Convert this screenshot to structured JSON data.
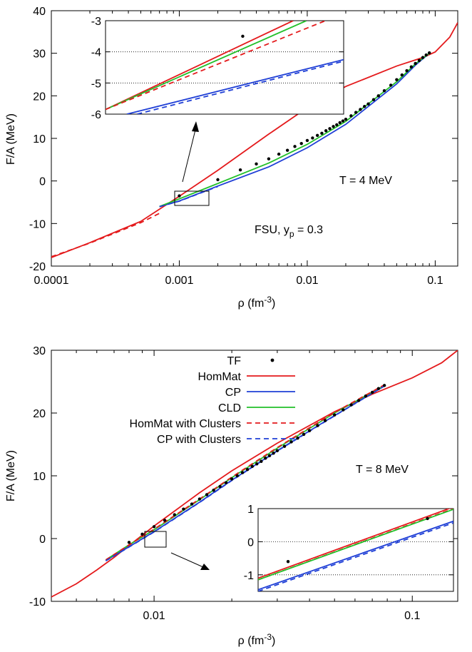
{
  "chart_data": [
    {
      "type": "line",
      "xscale": "log",
      "xlim": [
        0.0001,
        0.15
      ],
      "ylim": [
        -20,
        40
      ],
      "xlabel": "ρ (fm",
      "xlabel_sup": "-3",
      "xlabel_tail": ")",
      "ylabel": "F/A (MeV)",
      "xticks": [
        0.0001,
        0.001,
        0.01,
        0.1
      ],
      "xtick_labels": [
        "0.0001",
        "0.001",
        "0.01",
        "0.1"
      ],
      "yticks": [
        -20,
        -10,
        0,
        10,
        20,
        30,
        40
      ],
      "ytick_labels": [
        "-20",
        "-10",
        "0",
        "10",
        "20",
        "30",
        "40"
      ],
      "annotations": [
        {
          "text": "T = 4 MeV"
        },
        {
          "text": "FSU, y",
          "sub": "p",
          "tail": " = 0.3"
        }
      ],
      "series": [
        {
          "key": "HomMat",
          "color": "#e41a1c",
          "style": "solid",
          "x": [
            0.0001,
            0.0002,
            0.0005,
            0.001,
            0.002,
            0.005,
            0.01,
            0.02,
            0.05,
            0.08,
            0.1,
            0.13,
            0.15
          ],
          "y": [
            -18.0,
            -14.5,
            -9.5,
            -3.6,
            2.5,
            11.0,
            17.2,
            22.2,
            27.0,
            29.0,
            30.3,
            33.8,
            37.2
          ]
        },
        {
          "key": "CP",
          "color": "#1f3fd6",
          "style": "solid",
          "x": [
            0.0007,
            0.001,
            0.002,
            0.005,
            0.01,
            0.02,
            0.05,
            0.07,
            0.09
          ],
          "y": [
            -6.0,
            -4.7,
            -1.2,
            3.3,
            7.8,
            13.3,
            22.8,
            27.2,
            30.0
          ]
        },
        {
          "key": "CLD",
          "color": "#22c02a",
          "style": "solid",
          "x": [
            0.0007,
            0.001,
            0.002,
            0.005,
            0.01,
            0.02,
            0.05,
            0.07,
            0.09
          ],
          "y": [
            -6.0,
            -4.2,
            -0.6,
            4.2,
            8.6,
            14.0,
            23.3,
            27.5,
            30.0
          ]
        },
        {
          "key": "HomMat with Clusters",
          "color": "#e41a1c",
          "style": "dashed",
          "x": [
            0.0001,
            0.0002,
            0.0005,
            0.0007
          ],
          "y": [
            -17.8,
            -14.6,
            -9.8,
            -7.6
          ]
        },
        {
          "key": "CP with Clusters",
          "color": "#1f3fd6",
          "style": "dashed",
          "x": [
            0.0007,
            0.001,
            0.002
          ],
          "y": [
            -6.05,
            -4.75,
            -1.3
          ]
        }
      ],
      "tf_points": {
        "x": [
          0.001,
          0.002,
          0.003,
          0.004,
          0.005,
          0.006,
          0.007,
          0.008,
          0.009,
          0.01,
          0.011,
          0.012,
          0.013,
          0.014,
          0.015,
          0.016,
          0.017,
          0.018,
          0.019,
          0.02,
          0.022,
          0.024,
          0.026,
          0.028,
          0.03,
          0.033,
          0.036,
          0.04,
          0.045,
          0.05,
          0.055,
          0.06,
          0.065,
          0.07,
          0.075,
          0.08,
          0.085,
          0.09
        ],
        "y": [
          -3.5,
          0.3,
          2.6,
          4.0,
          5.2,
          6.3,
          7.2,
          8.1,
          8.8,
          9.5,
          10.1,
          10.7,
          11.2,
          11.8,
          12.3,
          12.8,
          13.2,
          13.7,
          14.1,
          14.5,
          15.3,
          16.1,
          16.8,
          17.5,
          18.1,
          19.1,
          20.0,
          21.2,
          22.5,
          23.8,
          24.9,
          25.9,
          26.8,
          27.6,
          28.3,
          29.0,
          29.6,
          30.1
        ]
      },
      "inset": {
        "xlim": [
          0.0007,
          0.0013
        ],
        "ylim": [
          -6,
          -3
        ],
        "yticks": [
          -6,
          -5,
          -4,
          -3
        ],
        "ytick_labels": [
          "-6",
          "-5",
          "-4",
          "-3"
        ],
        "dotted_y": [
          -5,
          -4
        ],
        "tf_points": {
          "x": [
            0.001
          ],
          "y": [
            -3.5
          ]
        },
        "series": [
          {
            "key": "HomMat",
            "color": "#e41a1c",
            "style": "solid",
            "x": [
              0.0007,
              0.00114
            ],
            "y": [
              -5.85,
              -3.0
            ]
          },
          {
            "key": "CLD",
            "color": "#22c02a",
            "style": "solid",
            "x": [
              0.0007,
              0.00118
            ],
            "y": [
              -5.85,
              -3.0
            ]
          },
          {
            "key": "HomMat with Clusters",
            "color": "#e41a1c",
            "style": "dashed",
            "x": [
              0.0007,
              0.00124
            ],
            "y": [
              -5.85,
              -3.0
            ]
          },
          {
            "key": "CP",
            "color": "#1f3fd6",
            "style": "solid",
            "x": [
              0.00074,
              0.0013
            ],
            "y": [
              -6.0,
              -4.25
            ]
          },
          {
            "key": "CP with Clusters",
            "color": "#1f3fd6",
            "style": "dashed",
            "x": [
              0.00076,
              0.0013
            ],
            "y": [
              -6.0,
              -4.3
            ]
          }
        ]
      }
    },
    {
      "type": "line",
      "xscale": "log",
      "xlim": [
        0.004,
        0.15
      ],
      "ylim": [
        -10,
        30
      ],
      "xlabel": "ρ (fm",
      "xlabel_sup": "-3",
      "xlabel_tail": ")",
      "ylabel": "F/A (MeV)",
      "xticks": [
        0.01,
        0.1
      ],
      "xtick_labels": [
        "0.01",
        "0.1"
      ],
      "yticks": [
        -10,
        0,
        10,
        20,
        30
      ],
      "ytick_labels": [
        "-10",
        "0",
        "10",
        "20",
        "30"
      ],
      "legend": {
        "placement": "top-left",
        "entries": [
          {
            "label": "TF",
            "key": "TF",
            "marker": "dot"
          },
          {
            "label": "HomMat",
            "key": "HomMat"
          },
          {
            "label": "CP",
            "key": "CP"
          },
          {
            "label": "CLD",
            "key": "CLD"
          },
          {
            "label": "HomMat with Clusters",
            "key": "HomMat with Clusters"
          },
          {
            "label": "CP with Clusters",
            "key": "CP with Clusters"
          }
        ]
      },
      "annotations": [
        {
          "text": "T = 8 MeV"
        }
      ],
      "series": [
        {
          "key": "HomMat",
          "color": "#e41a1c",
          "style": "solid",
          "x": [
            0.004,
            0.005,
            0.006,
            0.007,
            0.008,
            0.01,
            0.015,
            0.02,
            0.03,
            0.05,
            0.07,
            0.1,
            0.13,
            0.15
          ],
          "y": [
            -9.3,
            -7.2,
            -5.0,
            -3.0,
            -1.1,
            2.0,
            7.3,
            10.8,
            15.2,
            20.2,
            23.0,
            25.6,
            28.0,
            30.0
          ]
        },
        {
          "key": "CP",
          "color": "#1f3fd6",
          "style": "solid",
          "x": [
            0.0065,
            0.008,
            0.01,
            0.015,
            0.02,
            0.03,
            0.05,
            0.078
          ],
          "y": [
            -3.5,
            -1.3,
            1.1,
            5.8,
            9.3,
            14.0,
            19.6,
            24.3
          ]
        },
        {
          "key": "CLD",
          "color": "#22c02a",
          "style": "solid",
          "x": [
            0.0065,
            0.008,
            0.01,
            0.015,
            0.02,
            0.03,
            0.05,
            0.078
          ],
          "y": [
            -3.4,
            -1.0,
            1.4,
            6.2,
            9.7,
            14.4,
            20.0,
            24.4
          ]
        },
        {
          "key": "HomMat with Clusters",
          "color": "#e41a1c",
          "style": "dashed",
          "x": [
            0.0065,
            0.008,
            0.01,
            0.015,
            0.02,
            0.03,
            0.05,
            0.078
          ],
          "y": [
            -3.4,
            -1.0,
            1.5,
            6.3,
            9.8,
            14.5,
            20.1,
            24.5
          ]
        },
        {
          "key": "CP with Clusters",
          "color": "#1f3fd6",
          "style": "dashed",
          "x": [
            0.0065,
            0.008,
            0.01,
            0.015,
            0.02,
            0.03,
            0.05,
            0.078
          ],
          "y": [
            -3.55,
            -1.35,
            1.05,
            5.75,
            9.25,
            13.95,
            19.55,
            24.3
          ]
        }
      ],
      "tf_points": {
        "x": [
          0.008,
          0.009,
          0.01,
          0.011,
          0.012,
          0.013,
          0.014,
          0.015,
          0.016,
          0.017,
          0.018,
          0.019,
          0.02,
          0.021,
          0.022,
          0.023,
          0.024,
          0.025,
          0.026,
          0.027,
          0.028,
          0.029,
          0.03,
          0.032,
          0.034,
          0.036,
          0.038,
          0.04,
          0.043,
          0.046,
          0.05,
          0.054,
          0.058,
          0.062,
          0.066,
          0.07,
          0.074,
          0.078
        ],
        "y": [
          -0.6,
          0.7,
          1.9,
          2.9,
          3.8,
          4.7,
          5.5,
          6.3,
          7.0,
          7.7,
          8.3,
          8.9,
          9.5,
          10.0,
          10.5,
          11.0,
          11.5,
          11.9,
          12.3,
          12.8,
          13.2,
          13.6,
          14.0,
          14.7,
          15.4,
          16.0,
          16.6,
          17.2,
          18.0,
          18.8,
          19.7,
          20.5,
          21.3,
          22.0,
          22.7,
          23.3,
          23.9,
          24.4
        ]
      },
      "inset": {
        "xlim": [
          0.0078,
          0.0092
        ],
        "ylim": [
          -1.5,
          1
        ],
        "yticks": [
          -1,
          0,
          1
        ],
        "ytick_labels": [
          "-1",
          "0",
          "1"
        ],
        "dotted_y": [
          -1,
          0
        ],
        "tf_points": {
          "x": [
            0.008,
            0.009
          ],
          "y": [
            -0.6,
            0.7
          ]
        },
        "series": [
          {
            "key": "HomMat",
            "color": "#e41a1c",
            "style": "solid",
            "x": [
              0.0078,
              0.0092
            ],
            "y": [
              -1.1,
              1.05
            ]
          },
          {
            "key": "HomMat with Clusters",
            "color": "#e41a1c",
            "style": "dashed",
            "x": [
              0.0078,
              0.0092
            ],
            "y": [
              -1.15,
              1.0
            ]
          },
          {
            "key": "CLD",
            "color": "#22c02a",
            "style": "solid",
            "x": [
              0.0078,
              0.0092
            ],
            "y": [
              -1.15,
              0.98
            ]
          },
          {
            "key": "CP",
            "color": "#1f3fd6",
            "style": "solid",
            "x": [
              0.0078,
              0.0092
            ],
            "y": [
              -1.45,
              0.62
            ]
          },
          {
            "key": "CP with Clusters",
            "color": "#1f3fd6",
            "style": "dashed",
            "x": [
              0.0078,
              0.0092
            ],
            "y": [
              -1.5,
              0.57
            ]
          }
        ]
      }
    }
  ]
}
